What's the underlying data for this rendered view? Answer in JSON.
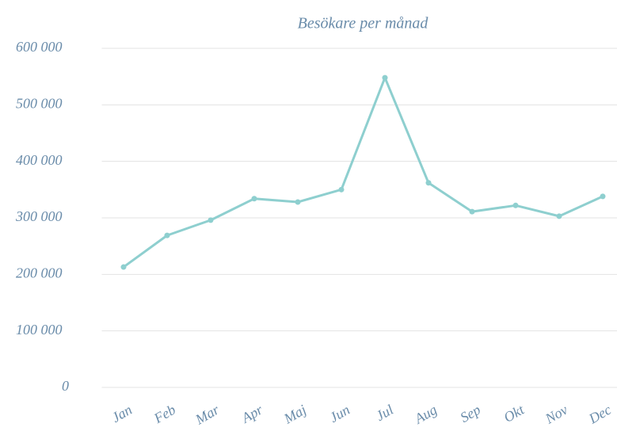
{
  "chart_data": {
    "type": "line",
    "title": "Besökare per månad",
    "categories": [
      "Jan",
      "Feb",
      "Mar",
      "Apr",
      "Maj",
      "Jun",
      "Jul",
      "Aug",
      "Sep",
      "Okt",
      "Nov",
      "Dec"
    ],
    "series": [
      {
        "name": "Besökare",
        "color": "#8ecfcf",
        "values": [
          213000,
          269000,
          296000,
          334000,
          328000,
          350000,
          548000,
          362000,
          311000,
          322000,
          303000,
          338000
        ]
      }
    ],
    "ylim": [
      0,
      600000
    ],
    "yticks": [
      0,
      {
        "value": 100000,
        "label": "100 000"
      },
      {
        "value": 200000,
        "label": "200 000"
      },
      {
        "value": 300000,
        "label": "300 000"
      },
      {
        "value": 400000,
        "label": "400 000"
      },
      {
        "value": 500000,
        "label": "500 000"
      },
      {
        "value": 600000,
        "label": "600 000"
      }
    ],
    "grid": true
  }
}
